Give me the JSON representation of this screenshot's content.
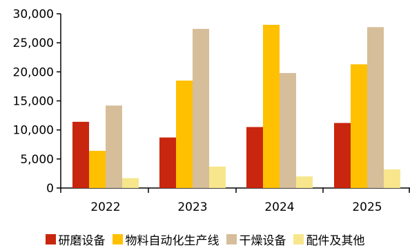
{
  "chart_data": {
    "type": "bar",
    "title": "",
    "xlabel": "",
    "ylabel": "",
    "categories": [
      "2022",
      "2023",
      "2024",
      "2025"
    ],
    "ylim": [
      0,
      30000
    ],
    "yticks": [
      0,
      5000,
      10000,
      15000,
      20000,
      25000,
      30000
    ],
    "ytick_labels": [
      "0",
      "5,000",
      "10,000",
      "15,000",
      "20,000",
      "25,000",
      "30,000"
    ],
    "grid": false,
    "legend_position": "bottom",
    "series": [
      {
        "name": "研磨设备",
        "color": "#C8260E",
        "values": [
          11400,
          8700,
          10500,
          11200
        ]
      },
      {
        "name": "物料自动化生产线",
        "color": "#FFC000",
        "values": [
          6400,
          18500,
          28100,
          21300
        ]
      },
      {
        "name": "干燥设备",
        "color": "#D6BE9A",
        "values": [
          14200,
          27400,
          19800,
          27700
        ]
      },
      {
        "name": "配件及其他",
        "color": "#F7E68C",
        "values": [
          1700,
          3700,
          2000,
          3200
        ]
      }
    ]
  }
}
